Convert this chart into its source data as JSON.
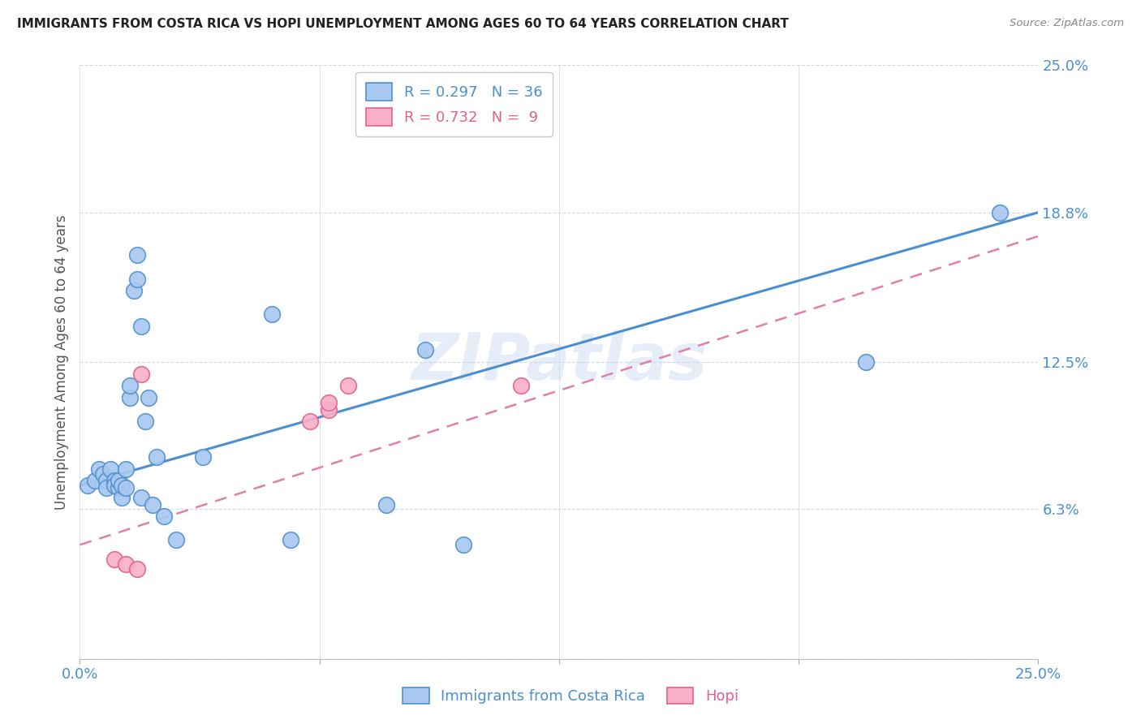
{
  "title": "IMMIGRANTS FROM COSTA RICA VS HOPI UNEMPLOYMENT AMONG AGES 60 TO 64 YEARS CORRELATION CHART",
  "source": "Source: ZipAtlas.com",
  "ylabel": "Unemployment Among Ages 60 to 64 years",
  "xlim": [
    0.0,
    0.25
  ],
  "ylim": [
    0.0,
    0.25
  ],
  "xtick_positions": [
    0.0,
    0.0625,
    0.125,
    0.1875,
    0.25
  ],
  "xtick_labels": [
    "0.0%",
    "",
    "",
    "",
    "25.0%"
  ],
  "ytick_positions": [
    0.0,
    0.063,
    0.125,
    0.188,
    0.25
  ],
  "ytick_labels_right": [
    "",
    "6.3%",
    "12.5%",
    "18.8%",
    "25.0%"
  ],
  "watermark": "ZIPatlas",
  "blue_face_color": "#a8c8f0",
  "blue_edge_color": "#5090d0",
  "pink_face_color": "#f8b0c8",
  "pink_edge_color": "#e06090",
  "blue_line_color": "#4a8fd0",
  "pink_line_color": "#e080a8",
  "axis_color": "#4a8fd0",
  "grid_color": "#d0d8e8",
  "blue_scatter_x": [
    0.002,
    0.004,
    0.005,
    0.006,
    0.007,
    0.007,
    0.008,
    0.009,
    0.009,
    0.01,
    0.01,
    0.011,
    0.011,
    0.012,
    0.012,
    0.013,
    0.013,
    0.014,
    0.015,
    0.015,
    0.016,
    0.016,
    0.017,
    0.018,
    0.019,
    0.02,
    0.022,
    0.025,
    0.032,
    0.05,
    0.055,
    0.08,
    0.09,
    0.1,
    0.205,
    0.24
  ],
  "blue_scatter_y": [
    0.073,
    0.075,
    0.08,
    0.078,
    0.075,
    0.072,
    0.08,
    0.075,
    0.073,
    0.072,
    0.075,
    0.068,
    0.073,
    0.072,
    0.08,
    0.11,
    0.115,
    0.155,
    0.16,
    0.17,
    0.14,
    0.068,
    0.1,
    0.11,
    0.065,
    0.085,
    0.06,
    0.05,
    0.085,
    0.145,
    0.05,
    0.065,
    0.13,
    0.048,
    0.125,
    0.188
  ],
  "pink_scatter_x": [
    0.009,
    0.012,
    0.015,
    0.016,
    0.06,
    0.065,
    0.065,
    0.07,
    0.115
  ],
  "pink_scatter_y": [
    0.042,
    0.04,
    0.038,
    0.12,
    0.1,
    0.105,
    0.108,
    0.115,
    0.115
  ],
  "blue_line_x0": 0.0,
  "blue_line_y0": 0.073,
  "blue_line_x1": 0.25,
  "blue_line_y1": 0.188,
  "pink_line_x0": 0.0,
  "pink_line_y0": 0.048,
  "pink_line_x1": 0.25,
  "pink_line_y1": 0.178
}
